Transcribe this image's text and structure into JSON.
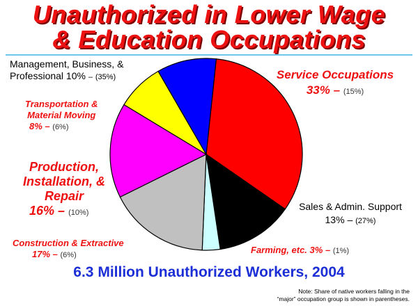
{
  "title_line1": "Unauthorized in Lower Wage",
  "title_line2": "& Education Occupations",
  "chart_data": {
    "type": "pie",
    "slices": [
      {
        "name": "Service Occupations",
        "value": 33,
        "native_share": "(15%)",
        "color": "#ff0000"
      },
      {
        "name": "Sales & Admin. Support",
        "value": 13,
        "native_share": "(27%)",
        "color": "#000000"
      },
      {
        "name": "Farming, etc.",
        "value": 3,
        "native_share": "(1%)",
        "color": "#ccffff"
      },
      {
        "name": "Construction & Extractive",
        "value": 17,
        "native_share": "(6%)",
        "color": "#c0c0c0"
      },
      {
        "name": "Production, Installation, & Repair",
        "value": 16,
        "native_share": "(10%)",
        "color": "#ff00ff"
      },
      {
        "name": "Transportation & Material Moving",
        "value": 8,
        "native_share": "(6%)",
        "color": "#ffff00"
      },
      {
        "name": "Management, Business, & Professional",
        "value": 10,
        "native_share": "(35%)",
        "color": "#0000ff"
      }
    ]
  },
  "labels": {
    "service": {
      "name": "Service Occupations",
      "pct": "33%",
      "dash": "–",
      "native": "(15%)"
    },
    "sales": {
      "name": "Sales & Admin. Support",
      "pct": "13%",
      "dash": "–",
      "native": "(27%)"
    },
    "farming": {
      "name": "Farming, etc.",
      "pct": "3%",
      "dash": "–",
      "native": "(1%)"
    },
    "construction": {
      "name": "Construction & Extractive",
      "pct": "17%",
      "dash": "–",
      "native": "(6%)"
    },
    "production": {
      "line1": "Production,",
      "line2": "Installation, &",
      "line3": "Repair",
      "pct": "16%",
      "dash": "–",
      "native": "(10%)"
    },
    "transport": {
      "line1": "Transportation &",
      "line2": "Material Moving",
      "pct": "8%",
      "dash": "–",
      "native": "(6%)"
    },
    "management": {
      "line1": "Management, Business, &",
      "line2": "Professional 10%",
      "dash": "–",
      "native": "(35%)"
    }
  },
  "footer": "6.3 Million Unauthorized Workers, 2004",
  "note_line1": "Note: Share of native workers falling in the",
  "note_line2": "“major” occupation group is shown in parentheses."
}
